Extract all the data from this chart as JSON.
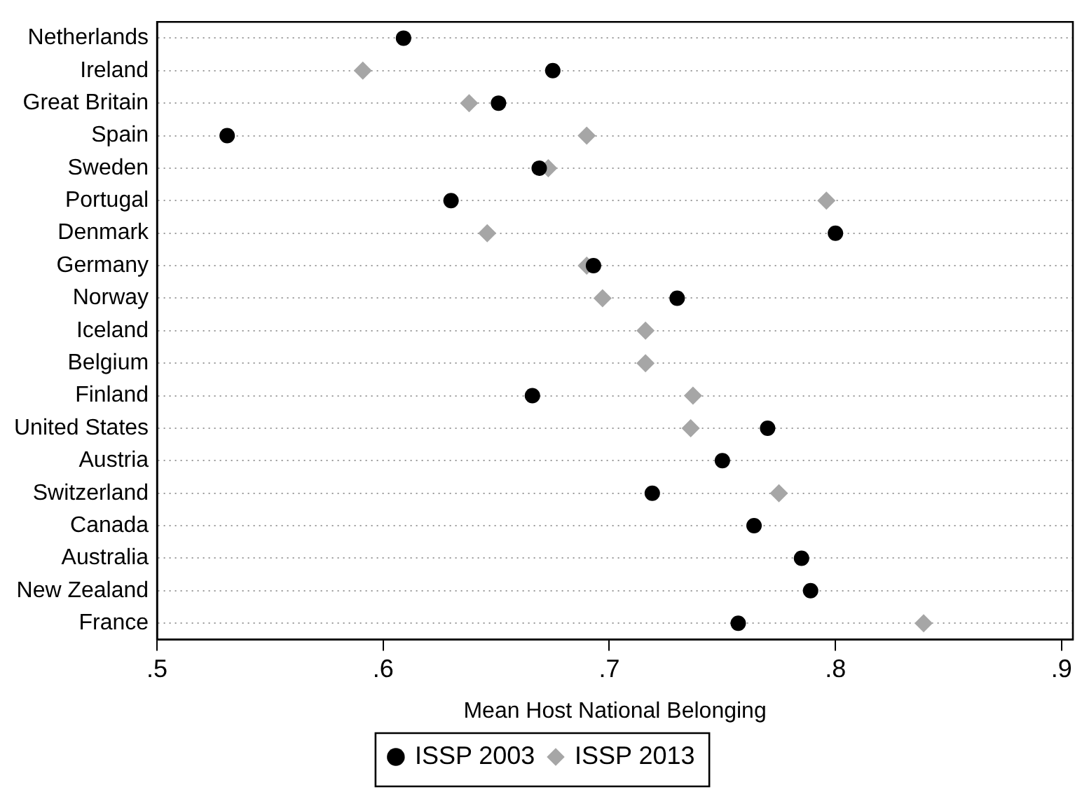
{
  "chart_data": {
    "type": "scatter",
    "xlabel": "Mean Host National Belonging",
    "categories": [
      "Netherlands",
      "Ireland",
      "Great Britain",
      "Spain",
      "Sweden",
      "Portugal",
      "Denmark",
      "Germany",
      "Norway",
      "Iceland",
      "Belgium",
      "Finland",
      "United States",
      "Austria",
      "Switzerland",
      "Canada",
      "Australia",
      "New Zealand",
      "France"
    ],
    "series": [
      {
        "name": "ISSP 2003",
        "color": "#000000",
        "marker": "circle",
        "values": [
          0.609,
          0.675,
          0.651,
          0.531,
          0.669,
          0.63,
          0.8,
          0.693,
          0.73,
          null,
          null,
          0.666,
          0.77,
          0.75,
          0.719,
          0.764,
          0.785,
          0.789,
          0.757
        ]
      },
      {
        "name": "ISSP 2013",
        "color": "#a6a6a6",
        "marker": "diamond",
        "values": [
          null,
          0.591,
          0.638,
          0.69,
          0.673,
          0.796,
          0.646,
          0.69,
          0.697,
          0.716,
          0.716,
          0.737,
          0.736,
          null,
          0.775,
          null,
          null,
          null,
          0.839
        ]
      }
    ],
    "orientation": "horizontal",
    "xlim": [
      0.5,
      0.905
    ],
    "xticks": [
      {
        "value": 0.5,
        "label": ".5"
      },
      {
        "value": 0.6,
        "label": ".6"
      },
      {
        "value": 0.7,
        "label": ".7"
      },
      {
        "value": 0.8,
        "label": ".8"
      },
      {
        "value": 0.9,
        "label": ".9"
      }
    ],
    "grid": "y",
    "legend": "bottom"
  }
}
